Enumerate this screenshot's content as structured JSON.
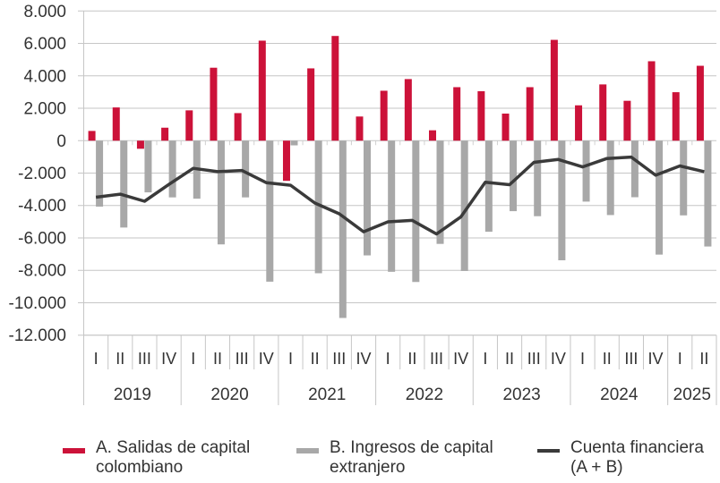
{
  "chart_data": {
    "type": "bar",
    "title": "",
    "xlabel": "",
    "ylabel": "",
    "ylim": [
      -12000,
      8000
    ],
    "yticks": [
      8000,
      6000,
      4000,
      2000,
      0,
      -2000,
      -4000,
      -6000,
      -8000,
      -10000,
      -12000
    ],
    "ytick_labels": [
      "8.000",
      "6.000",
      "4.000",
      "2.000",
      "0",
      "-2.000",
      "-4.000",
      "-6.000",
      "-8.000",
      "-10.000",
      "-12.000"
    ],
    "grid": true,
    "legend_position": "bottom",
    "years": [
      {
        "label": "2019",
        "quarters": [
          "I",
          "II",
          "III",
          "IV"
        ]
      },
      {
        "label": "2020",
        "quarters": [
          "I",
          "II",
          "III",
          "IV"
        ]
      },
      {
        "label": "2021",
        "quarters": [
          "I",
          "II",
          "III",
          "IV"
        ]
      },
      {
        "label": "2022",
        "quarters": [
          "I",
          "II",
          "III",
          "IV"
        ]
      },
      {
        "label": "2023",
        "quarters": [
          "I",
          "II",
          "III",
          "IV"
        ]
      },
      {
        "label": "2024",
        "quarters": [
          "I",
          "II",
          "III",
          "IV"
        ]
      },
      {
        "label": "2025",
        "quarters": [
          "I",
          "II"
        ]
      }
    ],
    "series": [
      {
        "name": "A. Salidas de capital colombiano",
        "type": "bar",
        "color": "#CC1239",
        "values": [
          600,
          2050,
          -500,
          800,
          1870,
          4500,
          1700,
          6170,
          -2480,
          4460,
          6460,
          1490,
          3080,
          3800,
          640,
          3300,
          3050,
          1670,
          3300,
          6220,
          2180,
          3470,
          2460,
          4900,
          2990,
          4620
        ]
      },
      {
        "name": "B. Ingresos de capital extranjero",
        "type": "bar",
        "color": "#A8A8A8",
        "values": [
          -4070,
          -5360,
          -3190,
          -3500,
          -3580,
          -6400,
          -3500,
          -8700,
          -290,
          -8180,
          -10940,
          -7080,
          -8090,
          -8720,
          -6370,
          -8040,
          -5620,
          -4350,
          -4660,
          -7380,
          -3760,
          -4590,
          -3490,
          -7030,
          -4610,
          -6530
        ]
      },
      {
        "name": "Cuenta financiera (A + B)",
        "type": "line",
        "color": "#3A3A3A",
        "values": [
          -3490,
          -3300,
          -3740,
          -2700,
          -1710,
          -1910,
          -1840,
          -2590,
          -2750,
          -3850,
          -4510,
          -5620,
          -5010,
          -4920,
          -5760,
          -4700,
          -2570,
          -2720,
          -1340,
          -1160,
          -1620,
          -1100,
          -1010,
          -2130,
          -1560,
          -1910
        ]
      }
    ]
  },
  "legend": [
    {
      "line1": "A. Salidas de capital",
      "line2": "colombiano",
      "color": "#CC1239"
    },
    {
      "line1": "B. Ingresos de capital",
      "line2": "extranjero",
      "color": "#A8A8A8"
    },
    {
      "line1": "Cuenta financiera",
      "line2": "(A + B)",
      "color": "#3A3A3A"
    }
  ]
}
